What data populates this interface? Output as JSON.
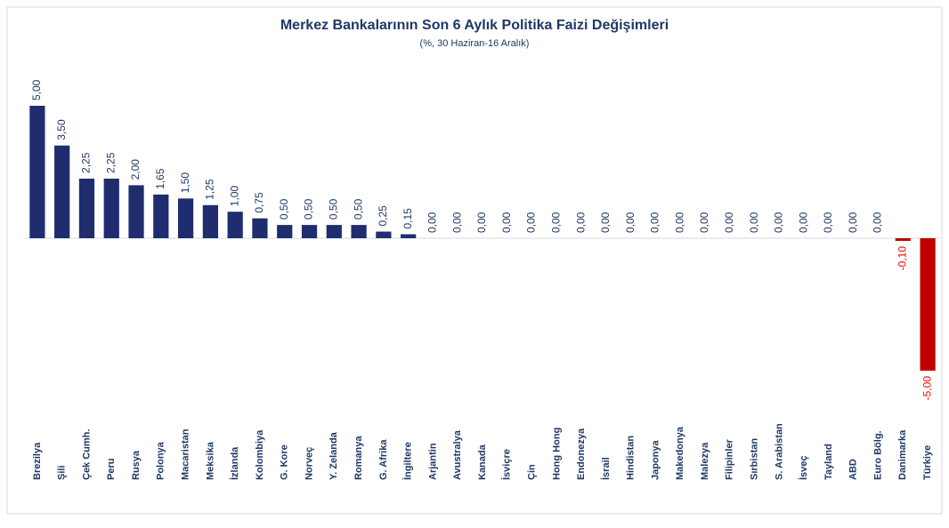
{
  "chart_data": {
    "type": "bar",
    "title": "Merkez Bankalarının Son 6 Aylık Politika Faizi Değişimleri",
    "subtitle": "(%, 30 Haziran-16 Aralık)",
    "categories": [
      "Brezilya",
      "Şili",
      "Çek Cumh.",
      "Peru",
      "Rusya",
      "Polonya",
      "Macaristan",
      "Meksika",
      "İzlanda",
      "Kolombiya",
      "G. Kore",
      "Norveç",
      "Y. Zelanda",
      "Romanya",
      "G. Afrika",
      "İngiltere",
      "Arjantin",
      "Avustralya",
      "Kanada",
      "İsviçre",
      "Çin",
      "Hong Hong",
      "Endonezya",
      "İsrail",
      "Hindistan",
      "Japonya",
      "Makedonya",
      "Malezya",
      "Filipinler",
      "Sırbistan",
      "S. Arabistan",
      "İsveç",
      "Tayland",
      "ABD",
      "Euro Bölg.",
      "Danimarka",
      "Türkiye"
    ],
    "values": [
      5,
      3.5,
      2.25,
      2.25,
      2,
      1.65,
      1.5,
      1.25,
      1,
      0.75,
      0.5,
      0.5,
      0.5,
      0.5,
      0.25,
      0.15,
      0,
      0,
      0,
      0,
      0,
      0,
      0,
      0,
      0,
      0,
      0,
      0,
      0,
      0,
      0,
      0,
      0,
      0,
      0,
      -0.1,
      -5
    ],
    "value_labels": [
      "5,00",
      "3,50",
      "2,25",
      "2,25",
      "2,00",
      "1,65",
      "1,50",
      "1,25",
      "1,00",
      "0,75",
      "0,50",
      "0,50",
      "0,50",
      "0,50",
      "0,25",
      "0,15",
      "0,00",
      "0,00",
      "0,00",
      "0,00",
      "0,00",
      "0,00",
      "0,00",
      "0,00",
      "0,00",
      "0,00",
      "0,00",
      "0,00",
      "0,00",
      "0,00",
      "0,00",
      "0,00",
      "0,00",
      "0,00",
      "0,00",
      "-0,10",
      "-5,00"
    ],
    "color": "#1f2d6e",
    "negative_color": "#c00000"
  }
}
